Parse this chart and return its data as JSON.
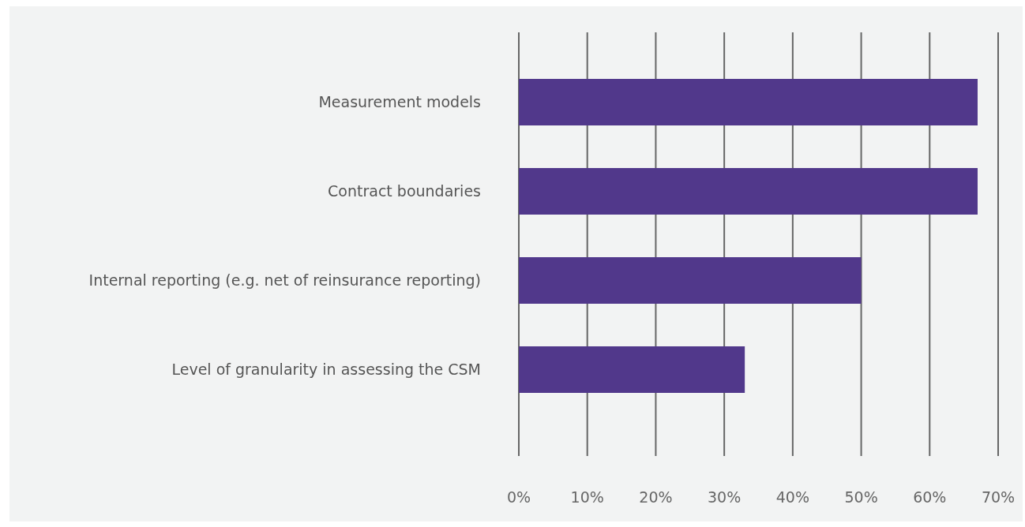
{
  "chart_data": {
    "type": "bar",
    "orientation": "horizontal",
    "categories": [
      "Measurement models",
      "Contract boundaries",
      "Internal reporting (e.g. net of reinsurance reporting)",
      "Level of granularity in assessing the CSM"
    ],
    "values": [
      67,
      67,
      50,
      33
    ],
    "color": "#51388b",
    "xlim": [
      0,
      70
    ],
    "xticks": [
      {
        "value": 0,
        "label": "0%"
      },
      {
        "value": 10,
        "label": "10%"
      },
      {
        "value": 20,
        "label": "20%"
      },
      {
        "value": 30,
        "label": "30%"
      },
      {
        "value": 40,
        "label": "40%"
      },
      {
        "value": 50,
        "label": "50%"
      },
      {
        "value": 60,
        "label": "60%"
      },
      {
        "value": 70,
        "label": "70%"
      }
    ],
    "grid": "x"
  }
}
